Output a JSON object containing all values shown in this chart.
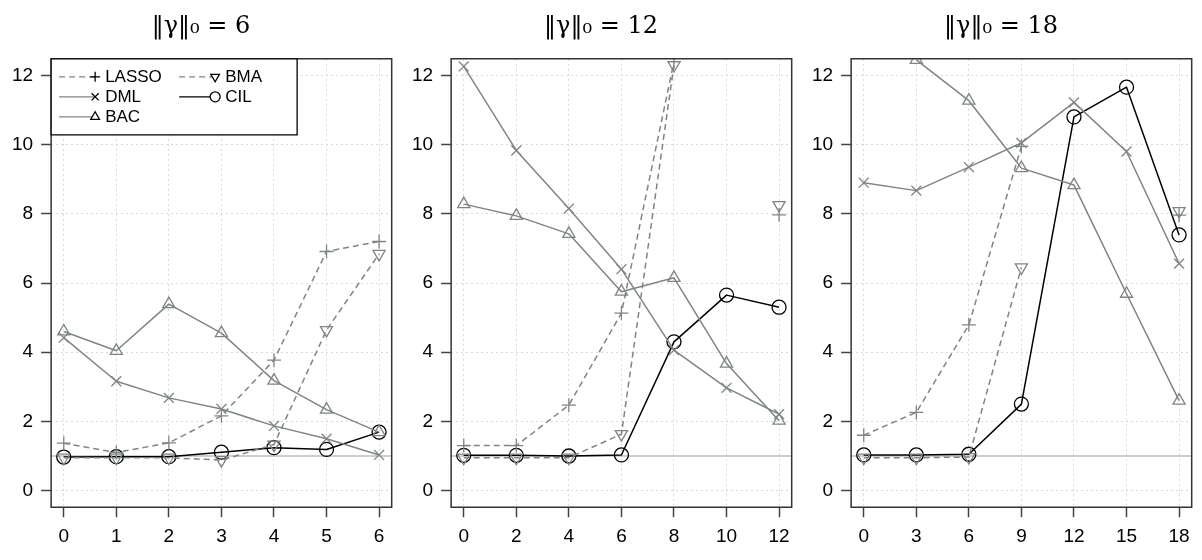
{
  "chart_data": [
    {
      "type": "line",
      "title": "‖γ‖₀ = 6",
      "legend": "top left",
      "grid": true,
      "xlim": [
        -0.24,
        6.24
      ],
      "xticks": [
        0,
        1,
        2,
        3,
        4,
        5,
        6
      ],
      "ylim": [
        -0.48,
        12.48
      ],
      "yticks": [
        0,
        2,
        4,
        6,
        8,
        10,
        12
      ],
      "x": [
        0,
        1,
        2,
        3,
        4,
        5,
        6
      ],
      "ref_lines": [
        {
          "axis": "y",
          "value": 1,
          "color": "#bebebe"
        }
      ],
      "series": [
        {
          "name": "LASSO",
          "color": "#7f8583",
          "marker": "cross",
          "line_style": "dashed",
          "values": [
            1.37,
            1.1,
            1.38,
            2.16,
            3.77,
            6.91,
            7.2
          ]
        },
        {
          "name": "DML",
          "color": "#7f8583",
          "marker": "x",
          "line_style": "solid",
          "values": [
            4.42,
            3.16,
            2.68,
            2.36,
            1.87,
            1.5,
            1.03
          ]
        },
        {
          "name": "BAC",
          "color": "#7f8583",
          "marker": "triangle",
          "line_style": "solid",
          "values": [
            4.6,
            4.04,
            5.39,
            4.55,
            3.18,
            2.34,
            1.69
          ]
        },
        {
          "name": "BMA",
          "color": "#7f8583",
          "marker": "triangle_down",
          "line_style": "dashed",
          "values": [
            0.95,
            0.95,
            0.95,
            0.88,
            1.33,
            4.64,
            6.84
          ]
        },
        {
          "name": "CIL",
          "color": "#000000",
          "marker": "circle",
          "line_style": "solid",
          "values": [
            0.97,
            0.98,
            0.98,
            1.11,
            1.24,
            1.19,
            1.69
          ]
        }
      ]
    },
    {
      "type": "line",
      "title": "‖γ‖₀ = 12",
      "legend": false,
      "grid": true,
      "xlim": [
        -0.48,
        12.48
      ],
      "xticks": [
        0,
        2,
        4,
        6,
        8,
        10,
        12
      ],
      "ylim": [
        -0.48,
        12.48
      ],
      "yticks": [
        0,
        2,
        4,
        6,
        8,
        10,
        12
      ],
      "x": [
        0,
        2,
        4,
        6,
        8,
        10,
        12
      ],
      "ref_lines": [
        {
          "axis": "y",
          "value": 1,
          "color": "#bebebe"
        }
      ],
      "series": [
        {
          "color": "#7f8583",
          "marker": "cross",
          "line_style": "dashed",
          "values": [
            1.3,
            1.3,
            2.47,
            5.13,
            12.4,
            null,
            7.97
          ]
        },
        {
          "color": "#7f8583",
          "marker": "x",
          "line_style": "solid",
          "values": [
            12.26,
            9.83,
            8.15,
            6.4,
            4.06,
            2.97,
            2.21
          ]
        },
        {
          "color": "#7f8583",
          "marker": "triangle",
          "line_style": "solid",
          "values": [
            8.28,
            7.94,
            7.42,
            5.75,
            6.15,
            3.67,
            2.02
          ]
        },
        {
          "color": "#7f8583",
          "marker": "triangle_down",
          "line_style": "dashed",
          "values": [
            0.95,
            0.95,
            0.95,
            1.63,
            12.3,
            null,
            8.25
          ]
        },
        {
          "color": "#000000",
          "marker": "circle",
          "line_style": "solid",
          "values": [
            1.02,
            1.02,
            1.0,
            1.03,
            4.3,
            5.65,
            5.3
          ]
        }
      ]
    },
    {
      "type": "line",
      "title": "‖γ‖₀ = 18",
      "legend": false,
      "grid": true,
      "xlim": [
        -0.72,
        18.72
      ],
      "xticks": [
        0,
        3,
        6,
        9,
        12,
        15,
        18
      ],
      "ylim": [
        -0.48,
        12.48
      ],
      "yticks": [
        0,
        2,
        4,
        6,
        8,
        10,
        12
      ],
      "x": [
        0,
        3,
        6,
        9,
        12,
        15,
        18
      ],
      "ref_lines": [
        {
          "axis": "y",
          "value": 1,
          "color": "#bebebe"
        }
      ],
      "series": [
        {
          "color": "#7f8583",
          "marker": "cross",
          "line_style": "dashed",
          "values": [
            1.6,
            2.26,
            4.79,
            9.95,
            null,
            null,
            7.96
          ]
        },
        {
          "color": "#7f8583",
          "marker": "x",
          "line_style": "solid",
          "values": [
            8.9,
            8.67,
            9.35,
            10.05,
            11.22,
            9.8,
            6.56
          ]
        },
        {
          "color": "#7f8583",
          "marker": "triangle",
          "line_style": "solid",
          "values": [
            null,
            12.45,
            11.27,
            9.32,
            8.83,
            5.69,
            2.6
          ]
        },
        {
          "color": "#7f8583",
          "marker": "triangle_down",
          "line_style": "dashed",
          "values": [
            0.95,
            0.95,
            0.97,
            6.45,
            null,
            null,
            8.08
          ]
        },
        {
          "color": "#000000",
          "marker": "circle",
          "line_style": "solid",
          "values": [
            1.03,
            1.03,
            1.05,
            2.5,
            10.8,
            11.66,
            7.39
          ]
        }
      ]
    }
  ]
}
